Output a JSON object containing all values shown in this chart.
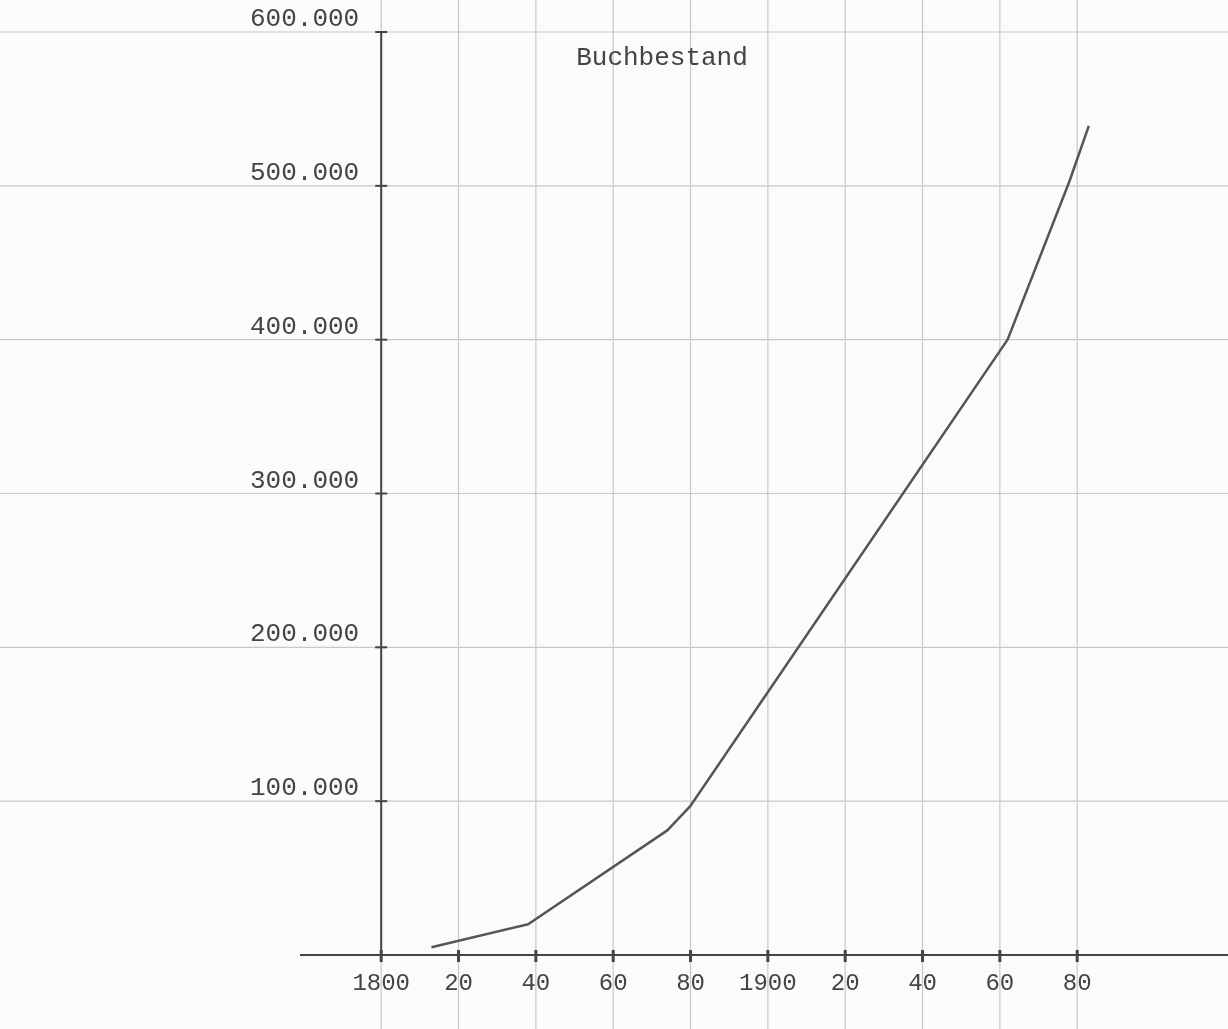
{
  "chart_data": {
    "type": "line",
    "title": "Buchbestand",
    "x": [
      1813,
      1838,
      1874,
      1880,
      1962,
      1978,
      1983
    ],
    "series": [
      {
        "color": "#555555",
        "values": [
          5000,
          20000,
          81000,
          97000,
          400000,
          503000,
          539000
        ]
      }
    ],
    "xlim": [
      1779,
      2019
    ],
    "xticks": [
      {
        "value": 1800,
        "label": "1800"
      },
      {
        "value": 1820,
        "label": "20"
      },
      {
        "value": 1840,
        "label": "40"
      },
      {
        "value": 1860,
        "label": "60"
      },
      {
        "value": 1880,
        "label": "80"
      },
      {
        "value": 1900,
        "label": "1900"
      },
      {
        "value": 1920,
        "label": "20"
      },
      {
        "value": 1940,
        "label": "40"
      },
      {
        "value": 1960,
        "label": "60"
      },
      {
        "value": 1980,
        "label": "80"
      }
    ],
    "ylim": [
      0,
      600000
    ],
    "yticks": [
      {
        "value": 100000,
        "label": "100.000"
      },
      {
        "value": 200000,
        "label": "200.000"
      },
      {
        "value": 300000,
        "label": "300.000"
      },
      {
        "value": 400000,
        "label": "400.000"
      },
      {
        "value": 500000,
        "label": "500.000"
      },
      {
        "value": 600000,
        "label": "600.000"
      }
    ],
    "grid": true,
    "marker": "none",
    "line_style": "solid"
  }
}
